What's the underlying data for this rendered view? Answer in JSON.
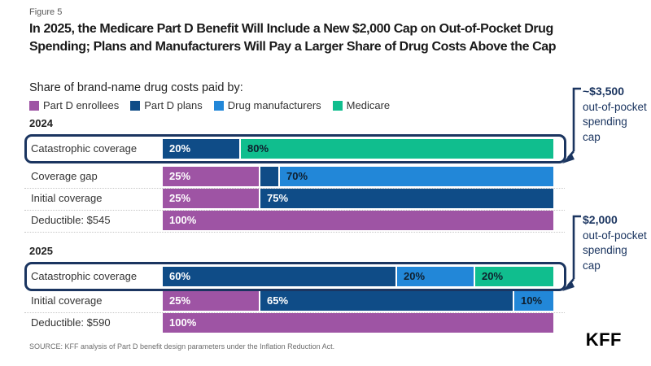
{
  "meta": {
    "figure_label": "Figure 5",
    "source": "SOURCE: KFF analysis of Part D benefit design parameters under the Inflation Reduction Act.",
    "logo": "KFF"
  },
  "colors": {
    "highlight_border": "#1B3560",
    "annotation_text": "#1B3560",
    "enrollees": "#9E54A4",
    "plans": "#0F4C87",
    "manufacturers": "#2287D8",
    "medicare": "#10BE8E"
  },
  "chart_data": {
    "type": "bar",
    "orientation": "horizontal",
    "stacked": true,
    "unit": "percent",
    "xlim": [
      0,
      100
    ],
    "grid": false,
    "legend_position": "top",
    "title": "In 2025, the Medicare Part D Benefit Will Include a New $2,000 Cap on Out-of-Pocket Drug Spending; Plans and Manufacturers Will Pay a Larger Share of Drug Costs Above the Cap",
    "subtitle": "Share of brand-name drug costs paid by:",
    "series": [
      {
        "name": "Part D enrollees",
        "color": "#9E54A4",
        "label_color": "#ffffff"
      },
      {
        "name": "Part D plans",
        "color": "#0F4C87",
        "label_color": "#ffffff"
      },
      {
        "name": "Drug manufacturers",
        "color": "#2287D8",
        "label_color": "#0f1f2e"
      },
      {
        "name": "Medicare",
        "color": "#10BE8E",
        "label_color": "#0f1f2e"
      }
    ],
    "groups": [
      {
        "year": "2024",
        "rows": [
          {
            "label": "Catastrophic coverage",
            "highlighted": true,
            "segments": [
              {
                "series": "Part D plans",
                "value": 20,
                "label": "20%"
              },
              {
                "series": "Medicare",
                "value": 80,
                "label": "80%"
              }
            ]
          },
          {
            "label": "Coverage gap",
            "highlighted": false,
            "segments": [
              {
                "series": "Part D enrollees",
                "value": 25,
                "label": "25%"
              },
              {
                "series": "Part D plans",
                "value": 5,
                "label": ""
              },
              {
                "series": "Drug manufacturers",
                "value": 70,
                "label": "70%"
              }
            ]
          },
          {
            "label": "Initial coverage",
            "highlighted": false,
            "segments": [
              {
                "series": "Part D enrollees",
                "value": 25,
                "label": "25%"
              },
              {
                "series": "Part D plans",
                "value": 75,
                "label": "75%"
              }
            ]
          },
          {
            "label": "Deductible: $545",
            "highlighted": false,
            "segments": [
              {
                "series": "Part D enrollees",
                "value": 100,
                "label": "100%"
              }
            ]
          }
        ]
      },
      {
        "year": "2025",
        "rows": [
          {
            "label": "Catastrophic coverage",
            "highlighted": true,
            "segments": [
              {
                "series": "Part D plans",
                "value": 60,
                "label": "60%"
              },
              {
                "series": "Drug manufacturers",
                "value": 20,
                "label": "20%"
              },
              {
                "series": "Medicare",
                "value": 20,
                "label": "20%"
              }
            ]
          },
          {
            "label": "Initial coverage",
            "highlighted": false,
            "segments": [
              {
                "series": "Part D enrollees",
                "value": 25,
                "label": "25%"
              },
              {
                "series": "Part D plans",
                "value": 65,
                "label": "65%"
              },
              {
                "series": "Drug manufacturers",
                "value": 10,
                "label": "10%"
              }
            ]
          },
          {
            "label": "Deductible: $590",
            "highlighted": false,
            "segments": [
              {
                "series": "Part D enrollees",
                "value": 100,
                "label": "100%"
              }
            ]
          }
        ]
      }
    ],
    "annotations": [
      {
        "value": "~$3,500",
        "text": "out-of-pocket spending cap",
        "target": "2024 Catastrophic coverage"
      },
      {
        "value": "$2,000",
        "text": "out-of-pocket spending cap",
        "target": "2025 Catastrophic coverage"
      }
    ]
  }
}
